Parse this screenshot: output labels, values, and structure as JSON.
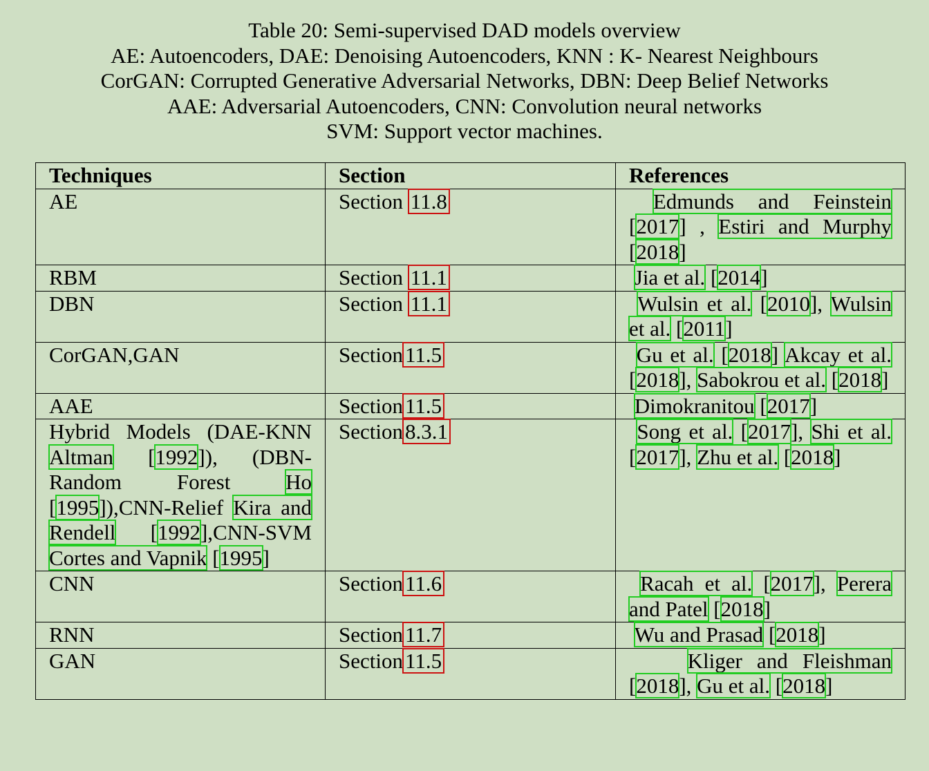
{
  "caption": [
    "Table 20: Semi-supervised DAD models overview",
    "AE: Autoencoders, DAE: Denoising Autoencoders, KNN : K- Nearest Neighbours",
    "CorGAN: Corrupted Generative Adversarial Networks, DBN: Deep Belief Networks",
    "AAE: Adversarial Autoencoders, CNN: Convolution neural networks",
    "SVM: Support vector machines."
  ],
  "headers": [
    "Techniques",
    "Section",
    "References"
  ],
  "section_word": "Section",
  "rows": [
    {
      "technique": "AE",
      "section": "11.8",
      "refs": [
        [
          "Edmunds and Feinstein",
          "2017"
        ],
        [
          "Estiri and Murphy",
          "2018"
        ]
      ]
    },
    {
      "technique": "RBM",
      "section": "11.1",
      "refs": [
        [
          "Jia et al.",
          "2014"
        ]
      ]
    },
    {
      "technique": "DBN",
      "section": "11.1",
      "refs": [
        [
          "Wulsin et al.",
          "2010"
        ],
        [
          "Wulsin et al.",
          "2011"
        ]
      ]
    },
    {
      "technique": "CorGAN,GAN",
      "section": "11.5",
      "refs": [
        [
          "Gu et al.",
          "2018"
        ],
        [
          "Akcay et al.",
          "2018"
        ],
        [
          "Sabokrou et al.",
          "2018"
        ]
      ]
    },
    {
      "technique": "AAE",
      "section": "11.5",
      "refs": [
        [
          "Dimokranitou",
          "2017"
        ]
      ]
    },
    {
      "technique_parts": {
        "p1": "Hybrid Models (DAE-KNN ",
        "a1": "Altman",
        "y1": "1992",
        "s1": "]), (DBN-Random Forest ",
        "a2": "Ho",
        "y2": "1995",
        "s2": "]),CNN-Relief ",
        "a3": "Kira and Rendell",
        "y3": "1992",
        "s3": "],CNN-SVM ",
        "a4": "Cortes and Vapnik",
        "y4": "1995"
      },
      "section": "8.3.1",
      "refs": [
        [
          "Song et al.",
          "2017"
        ],
        [
          "Shi et al.",
          "2017"
        ],
        [
          "Zhu et al.",
          "2018"
        ]
      ]
    },
    {
      "technique": "CNN",
      "section": "11.6",
      "refs": [
        [
          "Racah et al.",
          "2017"
        ],
        [
          "Perera and Patel",
          "2018"
        ]
      ]
    },
    {
      "technique": "RNN",
      "section": "11.7",
      "refs": [
        [
          "Wu and Prasad",
          "2018"
        ]
      ]
    },
    {
      "technique": "GAN",
      "section": "11.5",
      "refs": [
        [
          "Kliger and Fleishman",
          "2018"
        ],
        [
          "Gu et al.",
          "2018"
        ]
      ]
    }
  ],
  "colors": {
    "background": "#cfdfc4",
    "citation_box": "#22cc22",
    "section_box": "#cc1111"
  }
}
